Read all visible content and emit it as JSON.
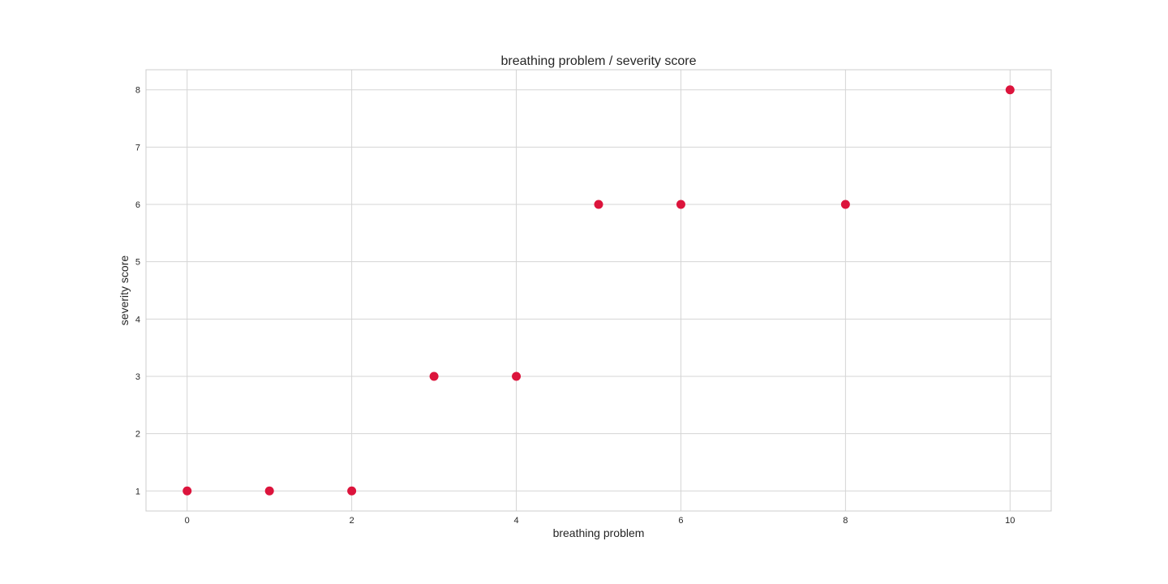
{
  "chart_data": {
    "type": "scatter",
    "title": "breathing problem / severity score",
    "xlabel": "breathing problem",
    "ylabel": "severity score",
    "x": [
      0,
      1,
      2,
      3,
      4,
      5,
      6,
      8,
      10
    ],
    "y": [
      1,
      1,
      1,
      3,
      3,
      6,
      6,
      6,
      8
    ],
    "xlim": [
      -0.5,
      10.5
    ],
    "ylim": [
      0.65,
      8.35
    ],
    "xticks": [
      0,
      2,
      4,
      6,
      8,
      10
    ],
    "yticks": [
      1,
      2,
      3,
      4,
      5,
      6,
      7,
      8
    ],
    "grid": true,
    "legend": "none",
    "colors": {
      "marker": "#dc143c",
      "grid": "#d5d5d5",
      "frame": "#cccccc",
      "text": "#262626"
    }
  }
}
